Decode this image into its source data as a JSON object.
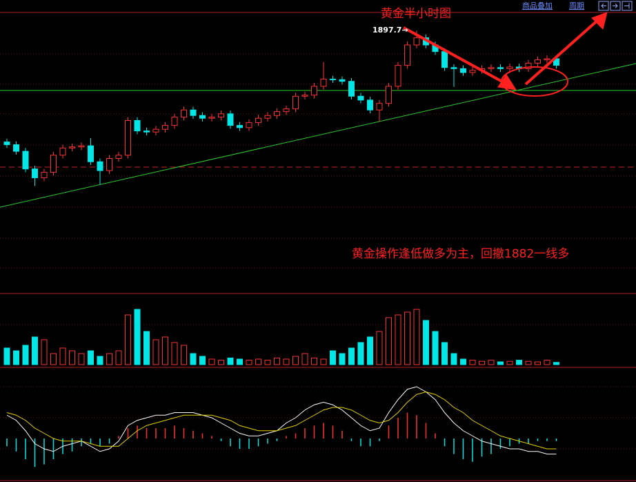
{
  "toolbar": [
    "商品叠加",
    "周期"
  ],
  "chart_data": [
    {
      "type": "candlestick",
      "title": "黄金半小时图",
      "annotations": [
        "1897.7→",
        "黄金操作逢低做多为主，回撤1882一线多"
      ],
      "up_color": "#ff3232",
      "down_color": "#00e6e6",
      "ylim": [
        1850,
        1901
      ],
      "open": [
        1877.5,
        1877.0,
        1875.8,
        1872.6,
        1871.0,
        1872.0,
        1875.1,
        1876.4,
        1876.6,
        1876.8,
        1873.9,
        1872.3,
        1874.5,
        1875.1,
        1881.4,
        1879.5,
        1879.3,
        1879.8,
        1880.5,
        1882.0,
        1883.3,
        1882.3,
        1881.8,
        1882.0,
        1882.6,
        1880.5,
        1880.1,
        1881.0,
        1881.8,
        1882.3,
        1883.0,
        1883.5,
        1885.8,
        1886.0,
        1887.6,
        1888.9,
        1888.8,
        1888.5,
        1885.8,
        1885.1,
        1883.3,
        1884.5,
        1887.6,
        1891.4,
        1895.1,
        1896.4,
        1895.1,
        1893.9,
        1891.0,
        1890.8,
        1890.1,
        1890.5,
        1890.8,
        1891.0,
        1890.8,
        1891.1,
        1890.8,
        1891.8,
        1892.4,
        1892.6
      ],
      "high": [
        1878.1,
        1877.6,
        1876.4,
        1873.2,
        1872.6,
        1875.7,
        1877.0,
        1877.2,
        1877.4,
        1878.2,
        1874.5,
        1875.1,
        1875.7,
        1882.0,
        1882.0,
        1880.1,
        1880.4,
        1881.1,
        1882.6,
        1883.9,
        1883.9,
        1882.9,
        1882.6,
        1883.2,
        1883.2,
        1881.1,
        1881.6,
        1882.4,
        1882.9,
        1883.6,
        1884.1,
        1886.4,
        1886.6,
        1888.2,
        1892.0,
        1889.5,
        1889.4,
        1889.1,
        1886.4,
        1885.7,
        1885.1,
        1888.2,
        1892.0,
        1895.7,
        1897.7,
        1897.0,
        1895.7,
        1894.5,
        1891.6,
        1891.4,
        1891.1,
        1891.4,
        1891.6,
        1891.6,
        1891.7,
        1891.7,
        1892.4,
        1893.0,
        1893.2,
        1893.2
      ],
      "low": [
        1876.4,
        1875.2,
        1872.0,
        1869.5,
        1870.4,
        1871.4,
        1874.5,
        1875.8,
        1876.0,
        1873.3,
        1869.8,
        1871.7,
        1873.9,
        1874.5,
        1878.9,
        1878.7,
        1878.7,
        1879.2,
        1879.9,
        1881.4,
        1881.7,
        1881.2,
        1881.2,
        1881.4,
        1879.9,
        1879.5,
        1879.5,
        1880.4,
        1881.2,
        1881.7,
        1882.4,
        1882.9,
        1885.2,
        1885.4,
        1887.0,
        1888.2,
        1887.9,
        1885.2,
        1884.5,
        1882.7,
        1881.2,
        1883.9,
        1887.0,
        1890.8,
        1894.5,
        1894.5,
        1893.3,
        1890.4,
        1887.5,
        1889.5,
        1889.5,
        1889.9,
        1890.2,
        1890.2,
        1890.2,
        1890.2,
        1890.2,
        1891.2,
        1891.8,
        1890.8
      ],
      "close": [
        1877.0,
        1875.8,
        1872.6,
        1871.0,
        1872.0,
        1875.1,
        1876.4,
        1876.6,
        1876.8,
        1873.9,
        1872.3,
        1874.5,
        1875.1,
        1881.4,
        1879.5,
        1879.3,
        1879.8,
        1880.5,
        1882.0,
        1883.3,
        1882.3,
        1881.8,
        1882.0,
        1882.6,
        1880.5,
        1880.1,
        1881.0,
        1881.8,
        1882.3,
        1883.0,
        1883.5,
        1885.8,
        1886.0,
        1887.6,
        1888.9,
        1888.8,
        1888.5,
        1885.8,
        1885.1,
        1883.3,
        1884.5,
        1887.6,
        1891.4,
        1895.1,
        1896.4,
        1895.1,
        1893.9,
        1891.0,
        1890.8,
        1890.1,
        1890.5,
        1890.8,
        1891.0,
        1890.8,
        1891.1,
        1890.8,
        1891.8,
        1892.4,
        1892.6,
        1891.4
      ]
    },
    {
      "type": "bar",
      "ylim": [
        0,
        100
      ],
      "values": [
        30,
        25,
        35,
        50,
        45,
        20,
        30,
        25,
        20,
        25,
        15,
        20,
        25,
        90,
        100,
        60,
        45,
        50,
        40,
        35,
        20,
        15,
        10,
        8,
        12,
        10,
        8,
        10,
        8,
        12,
        10,
        15,
        20,
        12,
        10,
        25,
        20,
        30,
        40,
        50,
        60,
        85,
        90,
        95,
        100,
        80,
        60,
        40,
        20,
        10,
        8,
        6,
        8,
        5,
        6,
        8,
        6,
        5,
        8,
        4
      ]
    },
    {
      "type": "macd",
      "ylim": [
        -1.6,
        2.4
      ],
      "dif_color": "#ffffff",
      "dea_color": "#e6d200",
      "histogram": [
        -0.3,
        -0.5,
        -0.8,
        -1.1,
        -1.0,
        -0.8,
        -0.6,
        -0.5,
        -0.3,
        -0.2,
        -0.3,
        -0.2,
        0.1,
        0.4,
        0.5,
        0.4,
        0.4,
        0.4,
        0.5,
        0.4,
        0.3,
        0.2,
        0.1,
        -0.1,
        -0.3,
        -0.4,
        -0.4,
        -0.3,
        -0.2,
        -0.1,
        0.1,
        0.2,
        0.4,
        0.5,
        0.6,
        0.5,
        0.3,
        -0.1,
        -0.3,
        -0.3,
        -0.1,
        0.5,
        0.8,
        1.0,
        0.9,
        0.6,
        0.2,
        -0.3,
        -0.6,
        -0.8,
        -0.9,
        -0.7,
        -0.6,
        -0.4,
        -0.3,
        -0.2,
        -0.2,
        -0.1,
        -0.1,
        -0.1
      ],
      "dif": [
        0.9,
        0.7,
        0.3,
        -0.2,
        -0.4,
        -0.5,
        -0.3,
        -0.2,
        -0.1,
        -0.3,
        -0.5,
        -0.4,
        -0.1,
        0.5,
        0.7,
        0.8,
        0.9,
        0.9,
        1.0,
        1.0,
        1.0,
        0.9,
        0.8,
        0.6,
        0.4,
        0.2,
        0.1,
        0.1,
        0.2,
        0.3,
        0.6,
        0.8,
        1.1,
        1.3,
        1.4,
        1.3,
        1.1,
        0.8,
        0.5,
        0.3,
        0.4,
        1.0,
        1.5,
        1.9,
        2.0,
        1.8,
        1.5,
        1.0,
        0.6,
        0.3,
        0.1,
        -0.1,
        -0.2,
        -0.3,
        -0.4,
        -0.4,
        -0.5,
        -0.5,
        -0.6,
        -0.6
      ],
      "dea": [
        1.0,
        0.9,
        0.7,
        0.4,
        0.2,
        0.0,
        -0.1,
        -0.1,
        -0.1,
        -0.2,
        -0.3,
        -0.3,
        -0.3,
        0.0,
        0.3,
        0.5,
        0.6,
        0.7,
        0.8,
        0.9,
        0.9,
        0.9,
        0.9,
        0.8,
        0.7,
        0.5,
        0.4,
        0.3,
        0.3,
        0.3,
        0.4,
        0.5,
        0.7,
        0.9,
        1.1,
        1.2,
        1.2,
        1.1,
        0.9,
        0.7,
        0.6,
        0.7,
        1.0,
        1.4,
        1.7,
        1.8,
        1.7,
        1.5,
        1.2,
        1.0,
        0.7,
        0.5,
        0.3,
        0.1,
        0.0,
        -0.1,
        -0.2,
        -0.3,
        -0.4,
        -0.4
      ]
    }
  ]
}
